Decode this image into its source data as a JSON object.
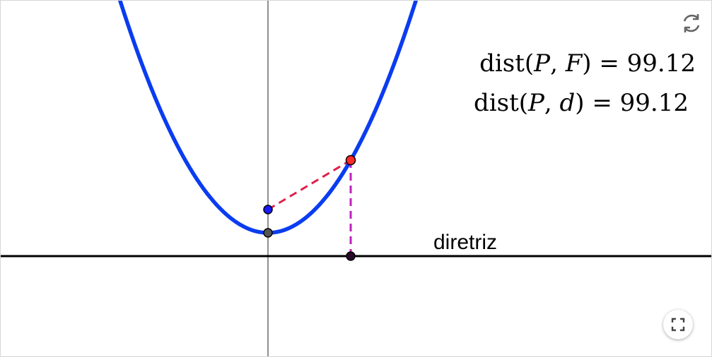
{
  "equations": {
    "dist_pf": {
      "func": "dist",
      "args_open": "(",
      "p": "P",
      "sep": ", ",
      "q": "F",
      "args_close": ")",
      "eq": " = ",
      "value": "99.12"
    },
    "dist_pd": {
      "func": "dist",
      "args_open": "(",
      "p": "P",
      "sep": ", ",
      "q": "d",
      "args_close": ")",
      "eq": " = ",
      "value": "99.12"
    }
  },
  "directrix_label": "diretriz",
  "colors": {
    "parabola": "#0a3cf0",
    "axis": "#555555",
    "directrix": "#000000",
    "focus": "#1a1aff",
    "point_p": "#ff2a2a",
    "vertex": "#555555",
    "foot": "#2a0a2a",
    "segment_pf": "#e0204a",
    "segment_pd": "#c020c0"
  },
  "icons": {
    "reset": "reset-icon",
    "fullscreen": "fullscreen-icon"
  }
}
